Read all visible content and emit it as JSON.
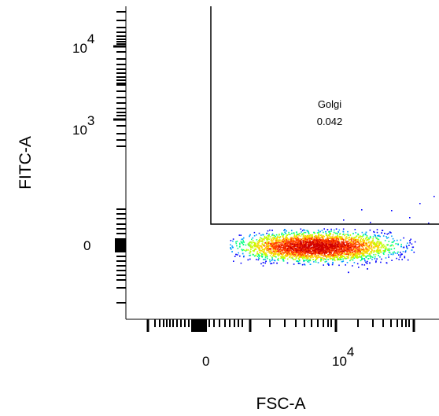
{
  "chart_data": {
    "type": "scatter",
    "title": "",
    "xlabel": "FSC-A",
    "ylabel": "FITC-A",
    "x_scale": "biexponential",
    "y_scale": "biexponential",
    "x_tick_labels": [
      {
        "base": "0",
        "exp": ""
      },
      {
        "base": "10",
        "exp": "4"
      }
    ],
    "y_tick_labels": [
      {
        "base": "0",
        "exp": ""
      },
      {
        "base": "10",
        "exp": "3"
      },
      {
        "base": "10",
        "exp": "4"
      }
    ],
    "gate": {
      "name": "Golgi",
      "value": "0.042",
      "shape": "rectangle"
    },
    "population": {
      "description": "single dense cluster centered near FITC-A 0",
      "colormap": [
        "#0000ff",
        "#00a0ff",
        "#00ff80",
        "#c0ff00",
        "#ffd000",
        "#ff4000",
        "#d00000"
      ]
    },
    "grid": false,
    "legend": "none"
  }
}
